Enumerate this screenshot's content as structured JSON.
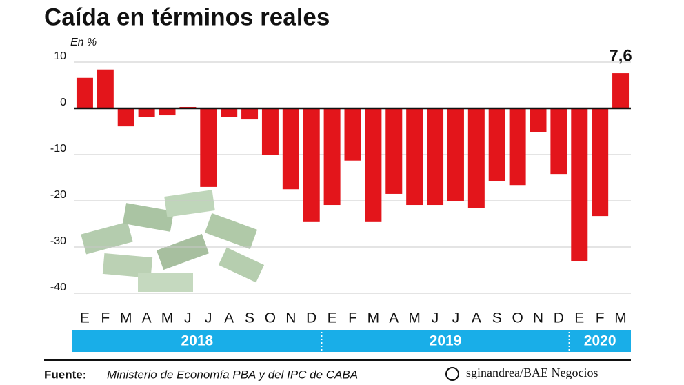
{
  "chart_data": {
    "type": "bar",
    "title": "Caída en términos reales",
    "y_label": "En %",
    "categories": [
      "E",
      "F",
      "M",
      "A",
      "M",
      "J",
      "J",
      "A",
      "S",
      "O",
      "N",
      "D",
      "E",
      "F",
      "M",
      "A",
      "M",
      "J",
      "J",
      "A",
      "S",
      "O",
      "N",
      "D",
      "E",
      "F",
      "M"
    ],
    "years": [
      "2018",
      "2019",
      "2020"
    ],
    "values": [
      6.6,
      8.4,
      -3.9,
      -1.9,
      -1.5,
      0.3,
      -17,
      -1.9,
      -2.4,
      -10,
      -17.5,
      -24.6,
      -20.9,
      -11.3,
      -24.6,
      -18.5,
      -20.9,
      -20.9,
      -20,
      -21.6,
      -15.7,
      -16.6,
      -5.2,
      -14.2,
      -33.1,
      -23.3,
      7.6
    ],
    "value_labels": [
      null,
      null,
      null,
      null,
      null,
      null,
      null,
      null,
      null,
      null,
      null,
      null,
      null,
      null,
      null,
      null,
      null,
      null,
      null,
      null,
      null,
      null,
      null,
      null,
      null,
      null,
      "7,6"
    ],
    "color": "#e3151b",
    "ylim": [
      -40,
      10
    ],
    "yticks": [
      10,
      0,
      -10,
      -20,
      -30,
      -40
    ],
    "grid": true,
    "source_label": "Fuente:",
    "source": "Ministerio de Economía PBA y del IPC de CABA",
    "credit": "sginandrea/BAE Negocios"
  }
}
